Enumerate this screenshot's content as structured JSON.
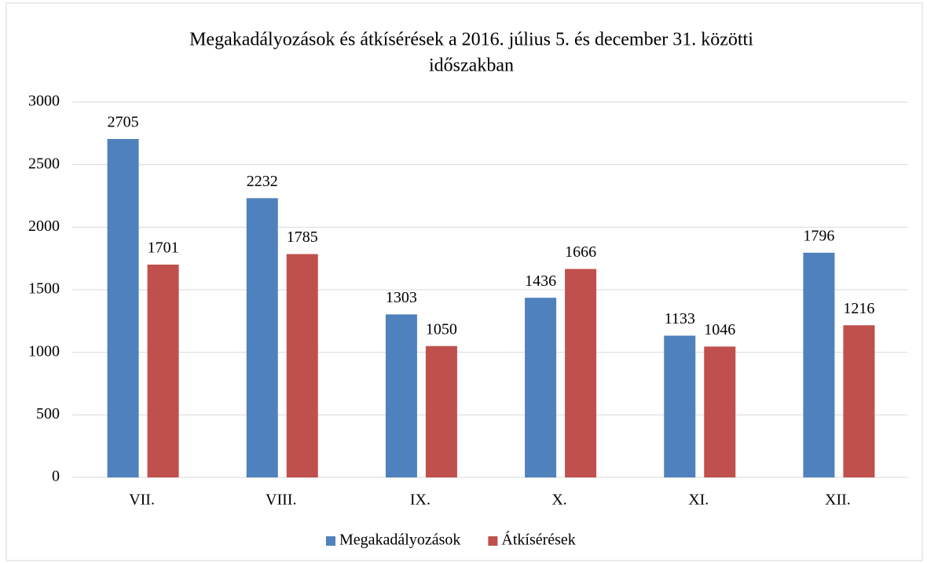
{
  "chart_data": {
    "type": "bar",
    "title": [
      "Megakadályozások és átkísérések a 2016. július 5. és december 31. közötti",
      "időszakban"
    ],
    "categories": [
      "VII.",
      "VIII.",
      "IX.",
      "X.",
      "XI.",
      "XII."
    ],
    "series": [
      {
        "name": "Megakadályozások",
        "color": "#4f81bd",
        "values": [
          2705,
          2232,
          1303,
          1436,
          1133,
          1796
        ]
      },
      {
        "name": "Átkísérések",
        "color": "#c0504d",
        "values": [
          1701,
          1785,
          1050,
          1666,
          1046,
          1216
        ]
      }
    ],
    "ylim": [
      0,
      3000
    ],
    "yticks": [
      0,
      500,
      1000,
      1500,
      2000,
      2500,
      3000
    ],
    "grid": true,
    "legend": "bottom"
  }
}
